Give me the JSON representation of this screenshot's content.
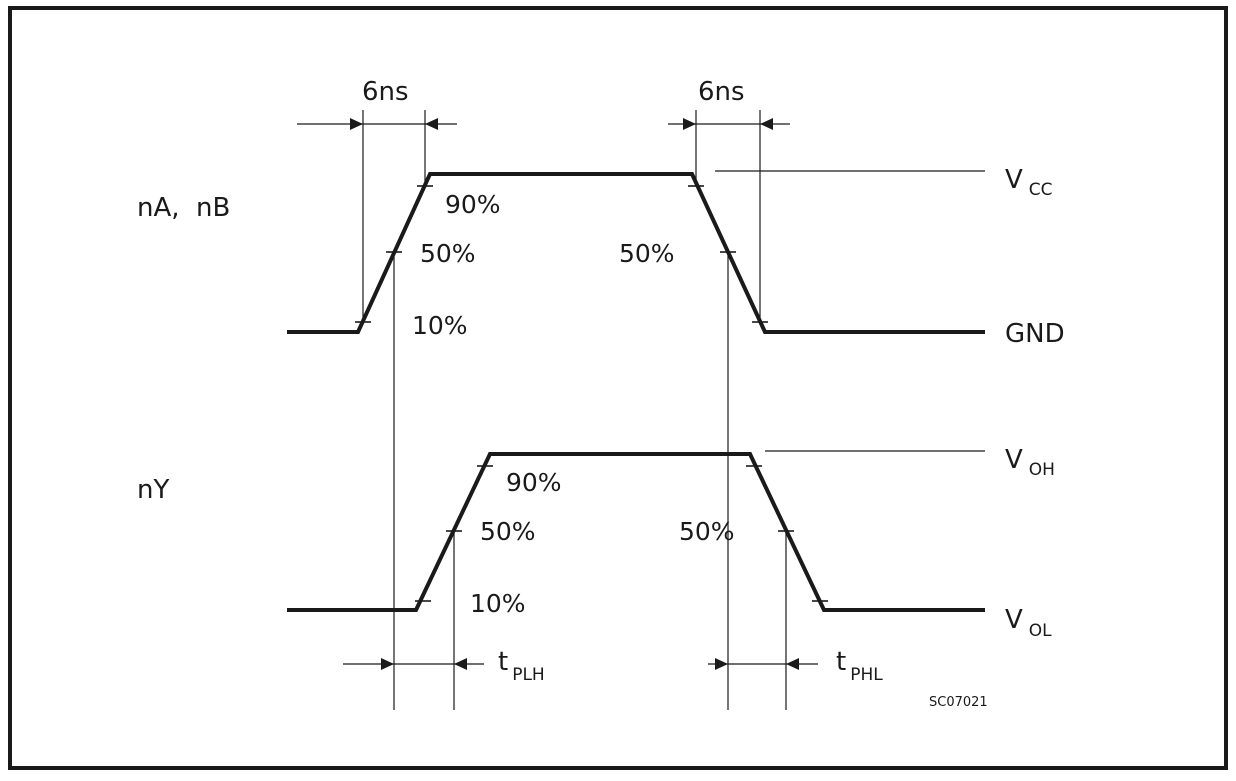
{
  "rise_time_label": "6ns",
  "fall_time_label": "6ns",
  "input_signal": "nA,  nB",
  "output_signal": "nY",
  "level_90": "90%",
  "level_50": "50%",
  "level_10": "10%",
  "vcc": {
    "main": "V",
    "sub": "CC"
  },
  "gnd": "GND",
  "voh": {
    "main": "V",
    "sub": "OH"
  },
  "vol": {
    "main": "V",
    "sub": "OL"
  },
  "tplh": {
    "main": "t",
    "sub": "PLH"
  },
  "tphl": {
    "main": "t",
    "sub": "PHL"
  },
  "figure_code": "SC07021",
  "colors": {
    "ink": "#1a1a1a",
    "background": "#ffffff"
  }
}
